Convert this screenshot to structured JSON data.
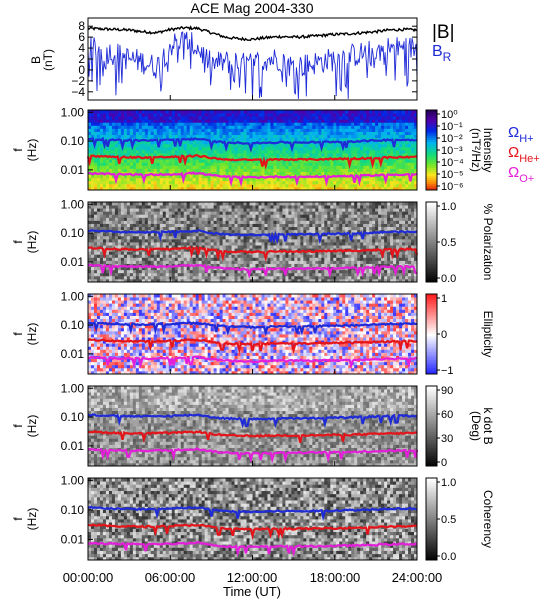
{
  "title": "ACE Mag 2004-330",
  "x_axis": {
    "label": "Time (UT)",
    "range_hours": [
      0,
      24
    ],
    "ticks": [
      "00:00:00",
      "06:00:00",
      "12:00:00",
      "18:00:00",
      "24:00:00"
    ],
    "tick_hours": [
      0,
      6,
      12,
      18,
      24
    ]
  },
  "gyro_legend": [
    {
      "label": "Ω",
      "sub": "H+",
      "color": "#1f2bd6"
    },
    {
      "label": "Ω",
      "sub": "He+",
      "color": "#e3151a"
    },
    {
      "label": "Ω",
      "sub": "O+",
      "color": "#e31fd9"
    }
  ],
  "freq_ticks": [
    "1.00",
    "0.10",
    "0.01"
  ],
  "freq_range_hz": [
    0.002,
    1.2
  ],
  "freq_axis": {
    "label": "f",
    "unit": "(Hz)"
  },
  "chart_data": [
    {
      "panel": "B",
      "type": "line",
      "ylabel": "B",
      "yunit": "(nT)",
      "ylim": [
        -5.5,
        9.5
      ],
      "yticks": [
        "8",
        "6",
        "4",
        "2",
        "0",
        "−2",
        "−4"
      ],
      "ytick_values": [
        8,
        6,
        4,
        2,
        0,
        -2,
        -4
      ],
      "series": [
        {
          "name": "|B|",
          "color": "#000000",
          "hours": [
            0,
            1,
            2,
            3,
            4,
            5,
            6,
            7,
            8,
            9,
            10,
            11,
            12,
            13,
            14,
            15,
            16,
            17,
            18,
            19,
            20,
            21,
            22,
            23,
            24
          ],
          "values": [
            7.6,
            7.5,
            7.4,
            7.3,
            7.0,
            6.8,
            7.4,
            7.7,
            7.6,
            6.8,
            6.0,
            5.7,
            5.6,
            5.9,
            6.1,
            6.0,
            6.1,
            6.3,
            6.5,
            6.6,
            6.8,
            7.0,
            7.3,
            7.4,
            7.3
          ]
        },
        {
          "name": "B",
          "sub": "R",
          "color": "#1f2bd6",
          "hours": [
            0,
            1,
            2,
            3,
            4,
            5,
            6,
            7,
            8,
            9,
            10,
            11,
            12,
            13,
            14,
            15,
            16,
            17,
            18,
            19,
            20,
            21,
            22,
            23,
            24
          ],
          "values": [
            4.0,
            3.5,
            3.0,
            2.0,
            1.5,
            0.5,
            4.5,
            5.5,
            4.0,
            1.0,
            1.5,
            1.0,
            1.0,
            2.0,
            2.0,
            0.5,
            1.0,
            1.5,
            2.0,
            2.5,
            3.0,
            3.5,
            4.0,
            4.0,
            4.0
          ]
        }
      ]
    },
    {
      "panel": "intensity",
      "type": "heatmap",
      "colorbar_label": "Intensity",
      "colorbar_unit": "(nT²/Hz)",
      "colorbar_ticks": [
        "10⁰",
        "10⁻¹",
        "10⁻²",
        "10⁻³",
        "10⁻⁴",
        "10⁻⁵",
        "10⁻⁶"
      ]
    },
    {
      "panel": "polarization",
      "type": "heatmap",
      "colorbar_label": "% Polarization",
      "colorbar_ticks": [
        "1.0",
        "0.5",
        "0.0"
      ]
    },
    {
      "panel": "ellipticity",
      "type": "heatmap",
      "colorbar_label": "Ellipticity",
      "colorbar_ticks": [
        "1",
        "0",
        "−1"
      ]
    },
    {
      "panel": "kdotb",
      "type": "heatmap",
      "colorbar_label": "k dot B",
      "colorbar_unit": "(Deg)",
      "colorbar_ticks": [
        "90",
        "60",
        "30",
        "0"
      ]
    },
    {
      "panel": "coherency",
      "type": "heatmap",
      "colorbar_label": "Coherency",
      "colorbar_ticks": [
        "1.0",
        "0.5",
        "0.0"
      ]
    }
  ],
  "gyrofrequency_hz": {
    "hours": [
      0,
      2,
      4,
      6,
      8,
      9,
      10,
      12,
      14,
      16,
      18,
      20,
      22,
      24
    ],
    "H+": [
      0.12,
      0.11,
      0.105,
      0.11,
      0.12,
      0.1,
      0.09,
      0.085,
      0.09,
      0.09,
      0.095,
      0.1,
      0.11,
      0.11
    ],
    "He+": [
      0.031,
      0.028,
      0.027,
      0.028,
      0.031,
      0.026,
      0.023,
      0.022,
      0.023,
      0.023,
      0.024,
      0.025,
      0.027,
      0.028
    ],
    "O+": [
      0.0075,
      0.007,
      0.0068,
      0.007,
      0.0078,
      0.0065,
      0.0058,
      0.0055,
      0.0058,
      0.0058,
      0.006,
      0.0063,
      0.0068,
      0.007
    ]
  },
  "colors": {
    "h_plus": "#1f2bd6",
    "he_plus": "#e3151a",
    "o_plus": "#e31fd9"
  }
}
